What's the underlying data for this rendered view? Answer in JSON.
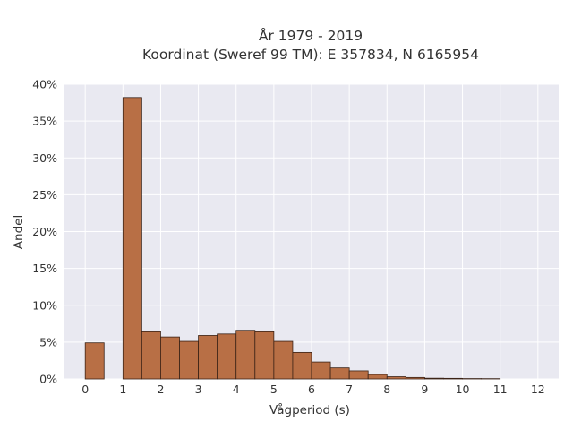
{
  "chart_data": {
    "type": "bar",
    "title": "År 1979 - 2019",
    "subtitle": "Koordinat (Sweref 99 TM): E 357834, N 6165954",
    "xlabel": "Vågperiod (s)",
    "ylabel": "Andel",
    "xlim": [
      -0.55,
      12.55
    ],
    "ylim": [
      0,
      40
    ],
    "x_ticks": [
      0,
      1,
      2,
      3,
      4,
      5,
      6,
      7,
      8,
      9,
      10,
      11,
      12
    ],
    "y_ticks": [
      0,
      5,
      10,
      15,
      20,
      25,
      30,
      35,
      40
    ],
    "y_tick_labels": [
      "0%",
      "5%",
      "10%",
      "15%",
      "20%",
      "25%",
      "30%",
      "35%",
      "40%"
    ],
    "grid": true,
    "bin_width": 0.5,
    "bins": [
      {
        "x0": 0.0,
        "value": 4.9
      },
      {
        "x0": 1.0,
        "value": 38.2
      },
      {
        "x0": 1.5,
        "value": 6.4
      },
      {
        "x0": 2.0,
        "value": 5.7
      },
      {
        "x0": 2.5,
        "value": 5.1
      },
      {
        "x0": 3.0,
        "value": 5.9
      },
      {
        "x0": 3.5,
        "value": 6.1
      },
      {
        "x0": 4.0,
        "value": 6.6
      },
      {
        "x0": 4.5,
        "value": 6.4
      },
      {
        "x0": 5.0,
        "value": 5.1
      },
      {
        "x0": 5.5,
        "value": 3.6
      },
      {
        "x0": 6.0,
        "value": 2.3
      },
      {
        "x0": 6.5,
        "value": 1.5
      },
      {
        "x0": 7.0,
        "value": 1.1
      },
      {
        "x0": 7.5,
        "value": 0.6
      },
      {
        "x0": 8.0,
        "value": 0.3
      },
      {
        "x0": 8.5,
        "value": 0.2
      },
      {
        "x0": 9.0,
        "value": 0.1
      },
      {
        "x0": 9.5,
        "value": 0.08
      },
      {
        "x0": 10.0,
        "value": 0.05
      },
      {
        "x0": 10.5,
        "value": 0.04
      }
    ],
    "colors": {
      "bar_fill": "#b86f45",
      "bar_stroke": "#3a2216",
      "plot_bg": "#e9e9f1",
      "grid": "#ffffff"
    }
  }
}
